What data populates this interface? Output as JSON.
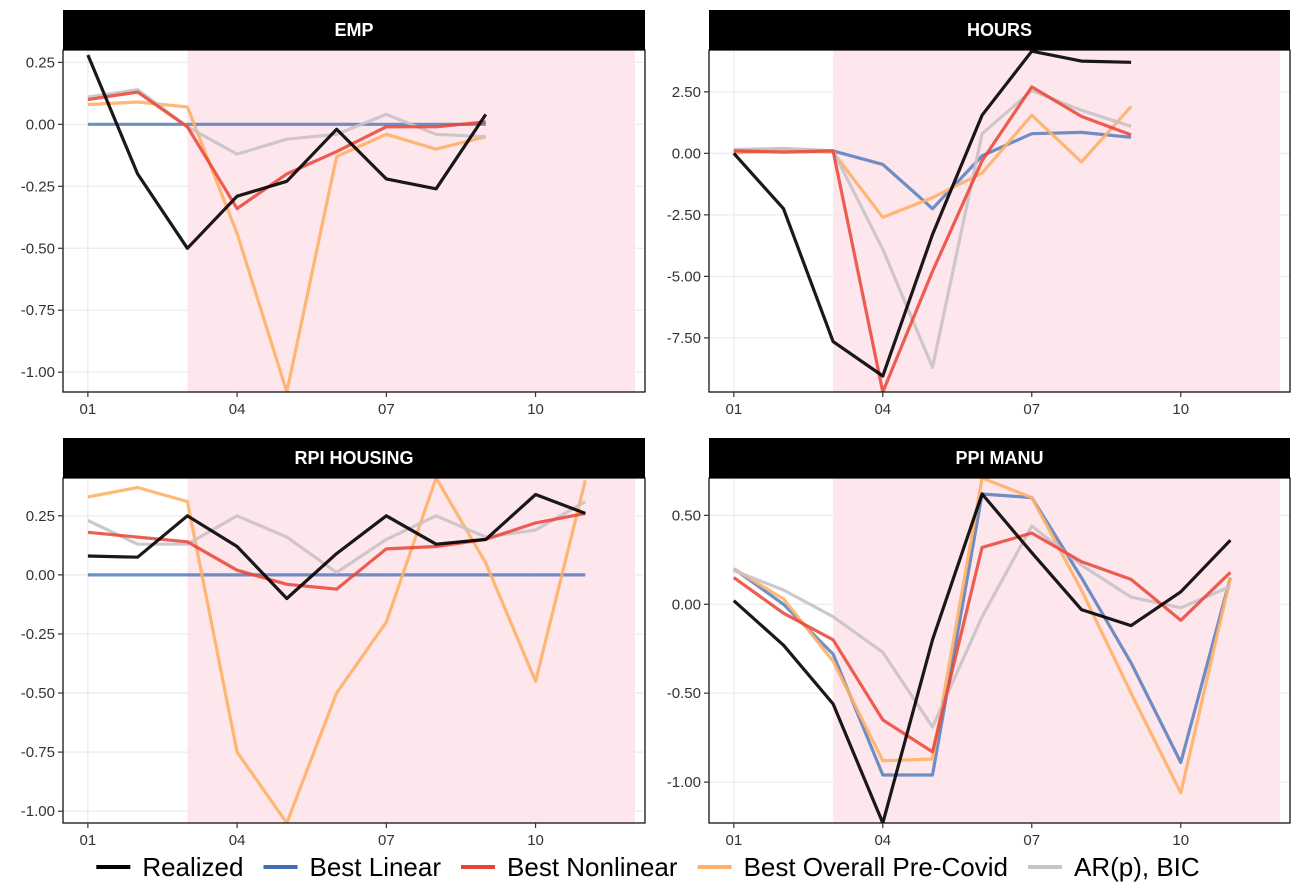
{
  "colors": {
    "Realized": "#000000",
    "Best Linear": "#3f6db5",
    "Best Nonlinear": "#ea4335",
    "Best Overall Pre-Covid": "#ffb066",
    "AR(p), BIC": "#c9c2c7",
    "shade": "#fde6ec",
    "strip": "#000000"
  },
  "legend": {
    "items": [
      {
        "label": "Realized",
        "color": "#000000"
      },
      {
        "label": "Best Linear",
        "color": "#3f6db5"
      },
      {
        "label": "Best Nonlinear",
        "color": "#ea4335"
      },
      {
        "label": "Best Overall Pre-Covid",
        "color": "#ffb066"
      },
      {
        "label": "AR(p), BIC",
        "color": "#c9c2c7"
      }
    ],
    "position": "bottom"
  },
  "chart_data": [
    {
      "type": "line",
      "title": "EMP",
      "x_ticks": [
        {
          "x": 1,
          "label": "01"
        },
        {
          "x": 4,
          "label": "04"
        },
        {
          "x": 7,
          "label": "07"
        },
        {
          "x": 10,
          "label": "10"
        }
      ],
      "xlim": [
        0.5,
        12.2
      ],
      "ylim": [
        -1.08,
        0.3
      ],
      "y_ticks": [
        {
          "y": 0.25,
          "label": "0.25"
        },
        {
          "y": 0.0,
          "label": "0.00"
        },
        {
          "y": -0.25,
          "label": "-0.25"
        },
        {
          "y": -0.5,
          "label": "-0.50"
        },
        {
          "y": -0.75,
          "label": "-0.75"
        },
        {
          "y": -1.0,
          "label": "-1.00"
        }
      ],
      "shade": [
        3,
        12
      ],
      "series": [
        {
          "name": "Realized",
          "x": [
            1,
            2,
            3,
            4,
            5,
            6,
            7,
            8,
            9
          ],
          "values": [
            0.28,
            -0.2,
            -0.5,
            -0.29,
            -0.23,
            -0.02,
            -0.22,
            -0.26,
            0.04
          ]
        },
        {
          "name": "Best Linear",
          "x": [
            1,
            2,
            3,
            4,
            5,
            6,
            7,
            8,
            9
          ],
          "values": [
            0.0,
            0.0,
            0.0,
            0.0,
            0.0,
            0.0,
            0.0,
            0.0,
            0.0
          ]
        },
        {
          "name": "Best Nonlinear",
          "x": [
            1,
            2,
            3,
            4,
            5,
            6,
            7,
            8,
            9
          ],
          "values": [
            0.1,
            0.13,
            -0.01,
            -0.34,
            -0.2,
            -0.11,
            -0.01,
            -0.01,
            0.01
          ]
        },
        {
          "name": "Best Overall Pre-Covid",
          "x": [
            1,
            2,
            3,
            4,
            5,
            6,
            7,
            8,
            9
          ],
          "values": [
            0.08,
            0.09,
            0.07,
            -0.44,
            -1.08,
            -0.13,
            -0.04,
            -0.1,
            -0.05
          ]
        },
        {
          "name": "AR(p), BIC",
          "x": [
            1,
            2,
            3,
            4,
            5,
            6,
            7,
            8,
            9
          ],
          "values": [
            0.11,
            0.14,
            -0.01,
            -0.12,
            -0.06,
            -0.04,
            0.04,
            -0.04,
            -0.05
          ]
        }
      ]
    },
    {
      "type": "line",
      "title": "HOURS",
      "x_ticks": [
        {
          "x": 1,
          "label": "01"
        },
        {
          "x": 4,
          "label": "04"
        },
        {
          "x": 7,
          "label": "07"
        },
        {
          "x": 10,
          "label": "10"
        }
      ],
      "xlim": [
        0.5,
        12.2
      ],
      "ylim": [
        -9.7,
        4.2
      ],
      "y_ticks": [
        {
          "y": 2.5,
          "label": "2.50"
        },
        {
          "y": 0.0,
          "label": "0.00"
        },
        {
          "y": -2.5,
          "label": "-2.50"
        },
        {
          "y": -5.0,
          "label": "-5.00"
        },
        {
          "y": -7.5,
          "label": "-7.50"
        }
      ],
      "shade": [
        3,
        12
      ],
      "series": [
        {
          "name": "Realized",
          "x": [
            1,
            2,
            3,
            4,
            5,
            6,
            7,
            8,
            9
          ],
          "values": [
            0.0,
            -2.25,
            -7.65,
            -9.05,
            -3.3,
            1.55,
            4.15,
            3.75,
            3.7
          ]
        },
        {
          "name": "Best Linear",
          "x": [
            1,
            2,
            3,
            4,
            5,
            6,
            7,
            8,
            9
          ],
          "values": [
            0.1,
            0.15,
            0.1,
            -0.45,
            -2.25,
            -0.1,
            0.8,
            0.85,
            0.65
          ]
        },
        {
          "name": "Best Nonlinear",
          "x": [
            1,
            2,
            3,
            4,
            5,
            6,
            7,
            8,
            9
          ],
          "values": [
            0.1,
            0.05,
            0.1,
            -9.7,
            -4.8,
            -0.3,
            2.7,
            1.5,
            0.75
          ]
        },
        {
          "name": "Best Overall Pre-Covid",
          "x": [
            1,
            2,
            3,
            4,
            5,
            6,
            7,
            8,
            9
          ],
          "values": [
            0.0,
            0.15,
            0.05,
            -2.6,
            -1.8,
            -0.8,
            1.55,
            -0.35,
            1.9
          ]
        },
        {
          "name": "AR(p), BIC",
          "x": [
            1,
            2,
            3,
            4,
            5,
            6,
            7,
            8,
            9
          ],
          "values": [
            0.15,
            0.2,
            0.1,
            -3.9,
            -8.7,
            0.8,
            2.55,
            1.75,
            1.1
          ]
        }
      ]
    },
    {
      "type": "line",
      "title": "RPI HOUSING",
      "x_ticks": [
        {
          "x": 1,
          "label": "01"
        },
        {
          "x": 4,
          "label": "04"
        },
        {
          "x": 7,
          "label": "07"
        },
        {
          "x": 10,
          "label": "10"
        }
      ],
      "xlim": [
        0.5,
        12.2
      ],
      "ylim": [
        -1.05,
        0.41
      ],
      "y_ticks": [
        {
          "y": 0.25,
          "label": "0.25"
        },
        {
          "y": 0.0,
          "label": "0.00"
        },
        {
          "y": -0.25,
          "label": "-0.25"
        },
        {
          "y": -0.5,
          "label": "-0.50"
        },
        {
          "y": -0.75,
          "label": "-0.75"
        },
        {
          "y": -1.0,
          "label": "-1.00"
        }
      ],
      "shade": [
        3,
        12
      ],
      "series": [
        {
          "name": "Realized",
          "x": [
            1,
            2,
            3,
            4,
            5,
            6,
            7,
            8,
            9,
            10,
            11
          ],
          "values": [
            0.08,
            0.075,
            0.25,
            0.12,
            -0.1,
            0.09,
            0.25,
            0.13,
            0.15,
            0.34,
            0.26
          ]
        },
        {
          "name": "Best Linear",
          "x": [
            1,
            2,
            3,
            4,
            5,
            6,
            7,
            8,
            9,
            10,
            11
          ],
          "values": [
            0.0,
            0.0,
            0.0,
            0.0,
            0.0,
            0.0,
            0.0,
            0.0,
            0.0,
            0.0,
            0.0
          ]
        },
        {
          "name": "Best Nonlinear",
          "x": [
            1,
            2,
            3,
            4,
            5,
            6,
            7,
            8,
            9,
            10,
            11
          ],
          "values": [
            0.18,
            0.16,
            0.14,
            0.02,
            -0.04,
            -0.06,
            0.11,
            0.12,
            0.15,
            0.22,
            0.26
          ]
        },
        {
          "name": "Best Overall Pre-Covid",
          "x": [
            1,
            2,
            3,
            4,
            5,
            6,
            7,
            8,
            9,
            10,
            11
          ],
          "values": [
            0.33,
            0.37,
            0.31,
            -0.75,
            -1.05,
            -0.5,
            -0.2,
            0.41,
            0.05,
            -0.45,
            0.4
          ]
        },
        {
          "name": "AR(p), BIC",
          "x": [
            1,
            2,
            3,
            4,
            5,
            6,
            7,
            8,
            9,
            10,
            11
          ],
          "values": [
            0.23,
            0.13,
            0.13,
            0.25,
            0.16,
            0.01,
            0.15,
            0.25,
            0.16,
            0.19,
            0.31
          ]
        }
      ]
    },
    {
      "type": "line",
      "title": "PPI MANU",
      "x_ticks": [
        {
          "x": 1,
          "label": "01"
        },
        {
          "x": 4,
          "label": "04"
        },
        {
          "x": 7,
          "label": "07"
        },
        {
          "x": 10,
          "label": "10"
        }
      ],
      "xlim": [
        0.5,
        12.2
      ],
      "ylim": [
        -1.23,
        0.71
      ],
      "y_ticks": [
        {
          "y": 0.5,
          "label": "0.50"
        },
        {
          "y": 0.0,
          "label": "0.00"
        },
        {
          "y": -0.5,
          "label": "-0.50"
        },
        {
          "y": -1.0,
          "label": "-1.00"
        }
      ],
      "shade": [
        3,
        12
      ],
      "series": [
        {
          "name": "Realized",
          "x": [
            1,
            2,
            3,
            4,
            5,
            6,
            7,
            8,
            9,
            10,
            11
          ],
          "values": [
            0.02,
            -0.23,
            -0.56,
            -1.23,
            -0.2,
            0.62,
            0.29,
            -0.03,
            -0.12,
            0.07,
            0.36
          ]
        },
        {
          "name": "Best Linear",
          "x": [
            1,
            2,
            3,
            4,
            5,
            6,
            7,
            8,
            9,
            10,
            11
          ],
          "values": [
            0.2,
            0.0,
            -0.28,
            -0.96,
            -0.96,
            0.62,
            0.6,
            0.15,
            -0.33,
            -0.89,
            0.15
          ]
        },
        {
          "name": "Best Nonlinear",
          "x": [
            1,
            2,
            3,
            4,
            5,
            6,
            7,
            8,
            9,
            10,
            11
          ],
          "values": [
            0.15,
            -0.05,
            -0.2,
            -0.65,
            -0.83,
            0.32,
            0.4,
            0.24,
            0.14,
            -0.09,
            0.18
          ]
        },
        {
          "name": "Best Overall Pre-Covid",
          "x": [
            1,
            2,
            3,
            4,
            5,
            6,
            7,
            8,
            9,
            10,
            11
          ],
          "values": [
            0.2,
            0.03,
            -0.32,
            -0.88,
            -0.87,
            0.71,
            0.6,
            0.08,
            -0.5,
            -1.06,
            0.15
          ]
        },
        {
          "name": "AR(p), BIC",
          "x": [
            1,
            2,
            3,
            4,
            5,
            6,
            7,
            8,
            9,
            10,
            11
          ],
          "values": [
            0.19,
            0.08,
            -0.07,
            -0.27,
            -0.69,
            -0.07,
            0.44,
            0.22,
            0.04,
            -0.02,
            0.1
          ]
        }
      ]
    }
  ]
}
